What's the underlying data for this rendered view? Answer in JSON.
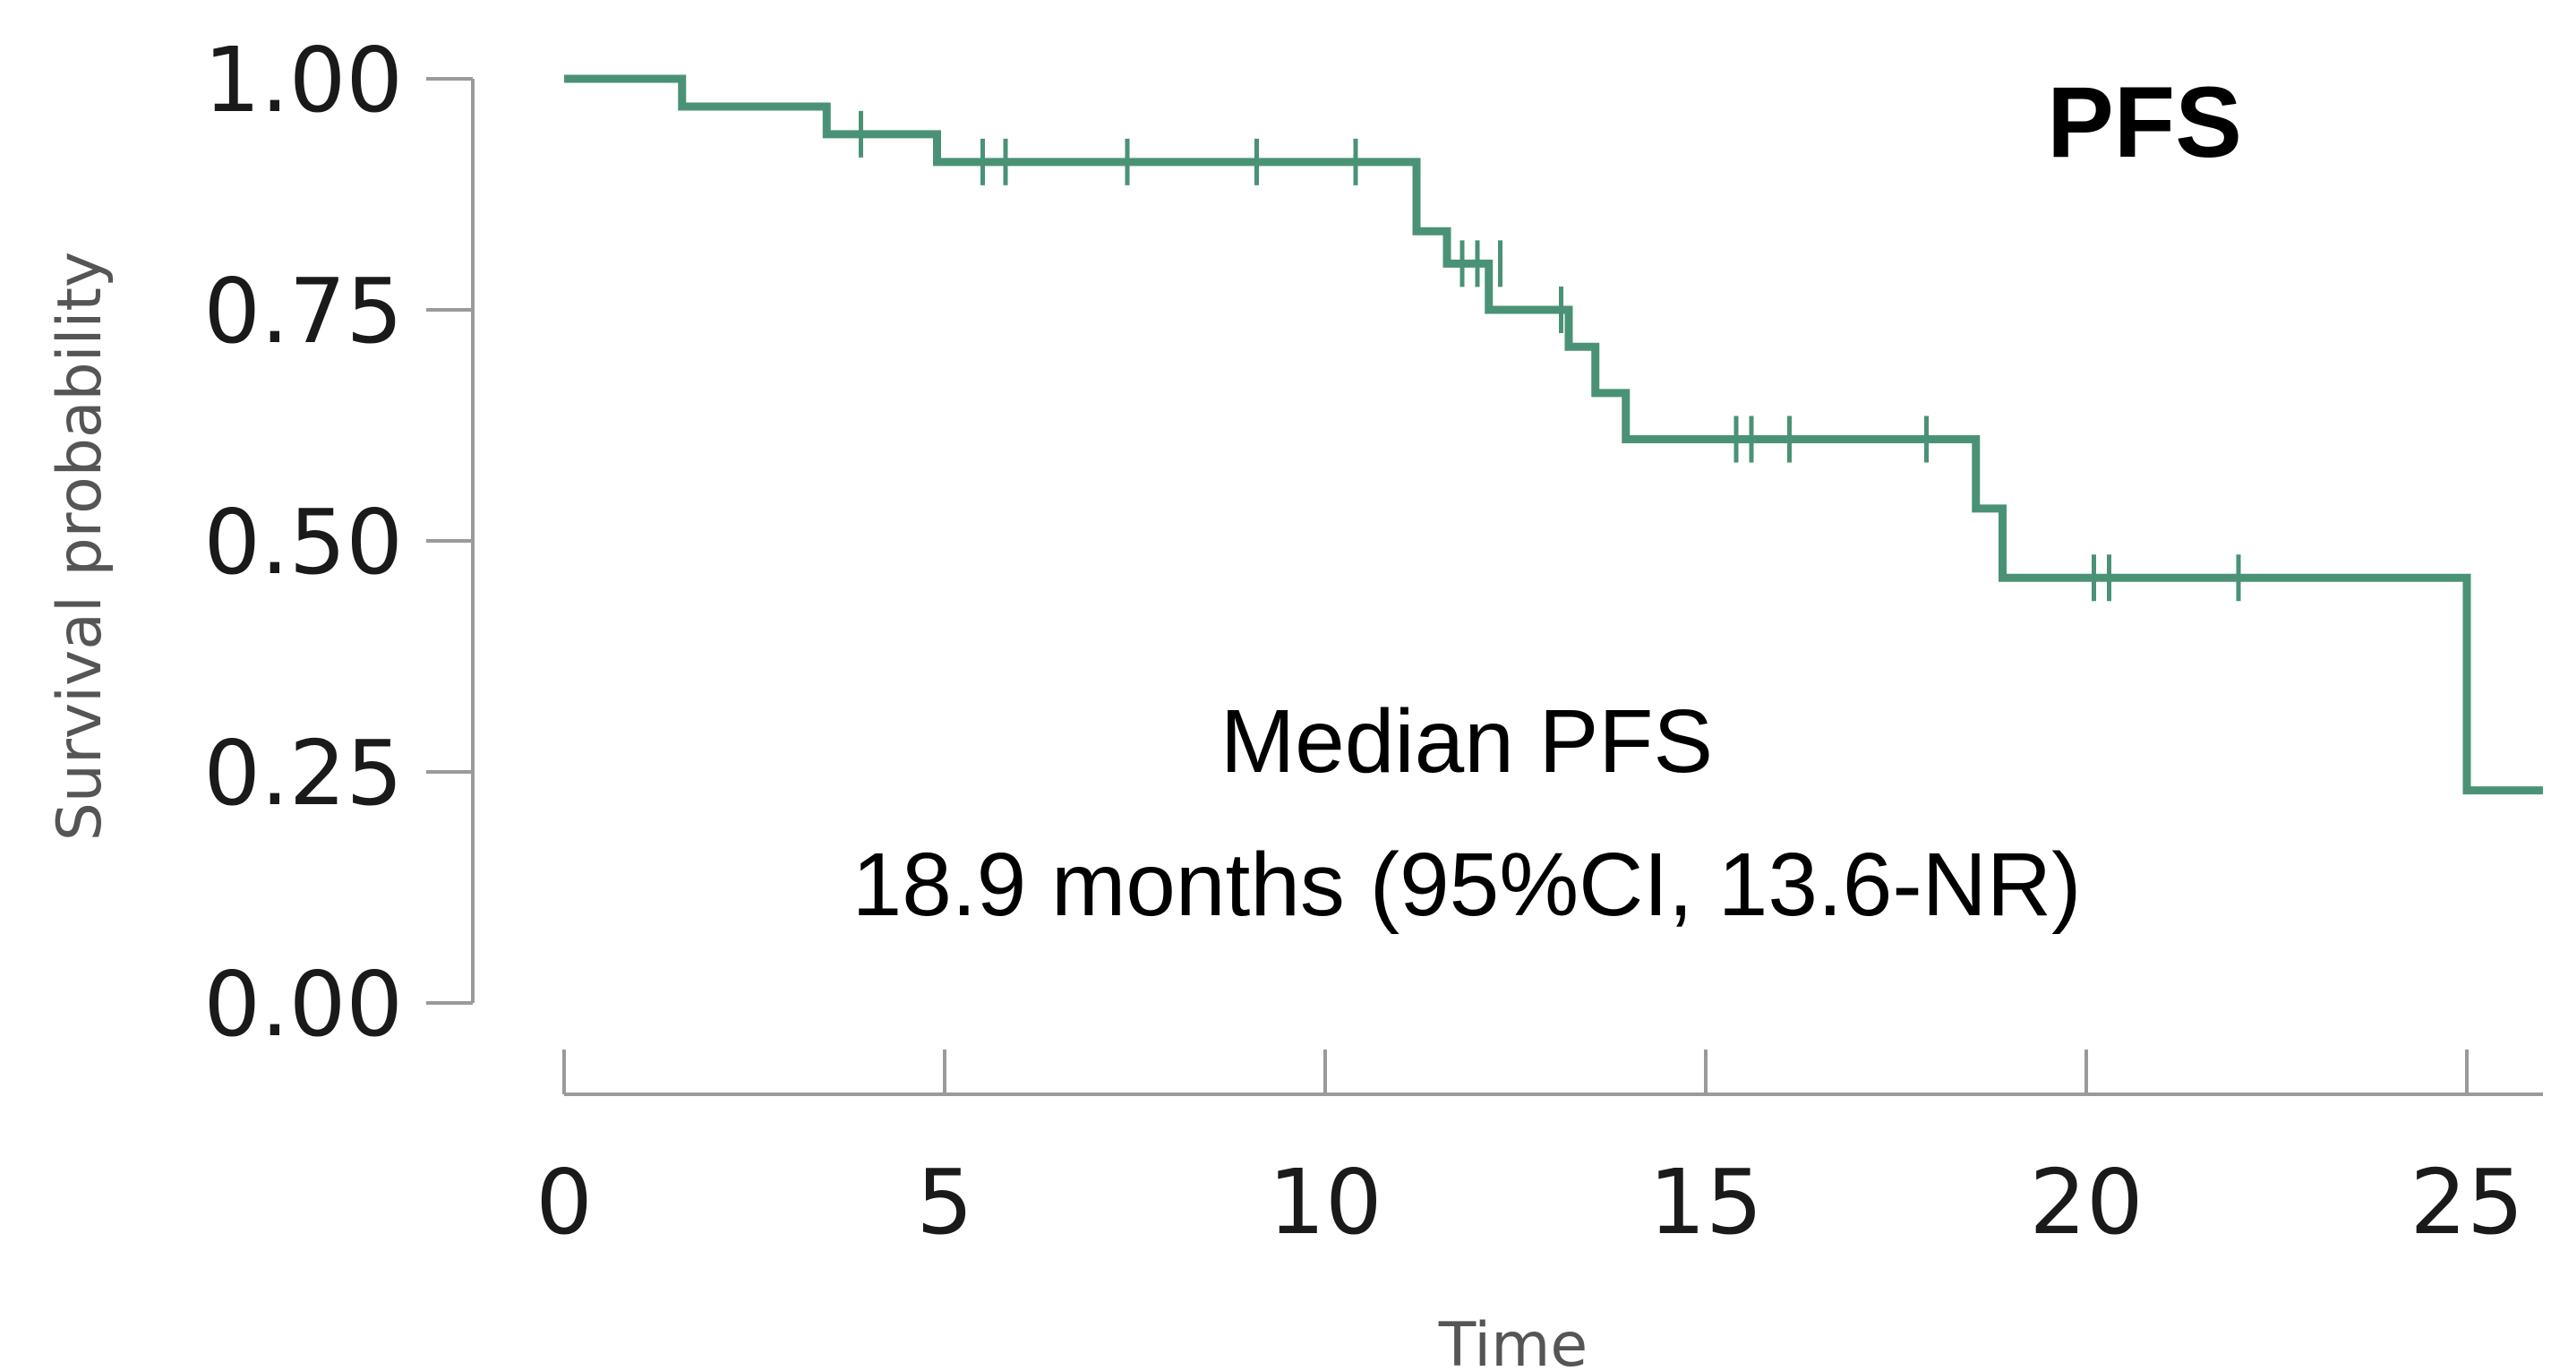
{
  "chart_data": {
    "type": "line",
    "subtype": "kaplan-meier step curve",
    "title": "PFS",
    "xlabel": "Time",
    "ylabel": "Survival probability",
    "xlim": [
      0,
      26
    ],
    "ylim": [
      0,
      1
    ],
    "x_ticks": [
      0,
      5,
      10,
      15,
      20,
      25
    ],
    "x_tick_labels": [
      "0",
      "5",
      "10",
      "15",
      "20",
      "25"
    ],
    "y_ticks": [
      0,
      0.25,
      0.5,
      0.75,
      1
    ],
    "y_tick_labels": [
      "0.00",
      "0.25",
      "0.50",
      "0.75",
      "1.00"
    ],
    "grid": false,
    "legend": "none",
    "color": "#4a9276",
    "series": [
      {
        "step_points": [
          [
            0,
            1.0
          ],
          [
            1.55,
            0.97
          ],
          [
            3.45,
            0.94
          ],
          [
            4.9,
            0.91
          ],
          [
            11.2,
            0.835
          ],
          [
            11.6,
            0.8
          ],
          [
            12.15,
            0.75
          ],
          [
            13.2,
            0.71
          ],
          [
            13.55,
            0.66
          ],
          [
            13.95,
            0.61
          ],
          [
            18.55,
            0.535
          ],
          [
            18.9,
            0.46
          ],
          [
            25.0,
            0.23
          ],
          [
            26.0,
            0.23
          ]
        ],
        "censor_times": [
          3.9,
          5.5,
          5.8,
          7.4,
          9.1,
          10.4,
          11.8,
          12.0,
          12.3,
          13.1,
          15.4,
          15.6,
          16.1,
          17.9,
          20.1,
          20.3,
          22.0
        ],
        "censor_values": [
          0.94,
          0.91,
          0.91,
          0.91,
          0.91,
          0.91,
          0.8,
          0.8,
          0.8,
          0.75,
          0.61,
          0.61,
          0.61,
          0.61,
          0.46,
          0.46,
          0.46
        ]
      }
    ],
    "annotations": [
      "Median PFS",
      "18.9 months (95%CI, 13.6-NR)"
    ]
  }
}
